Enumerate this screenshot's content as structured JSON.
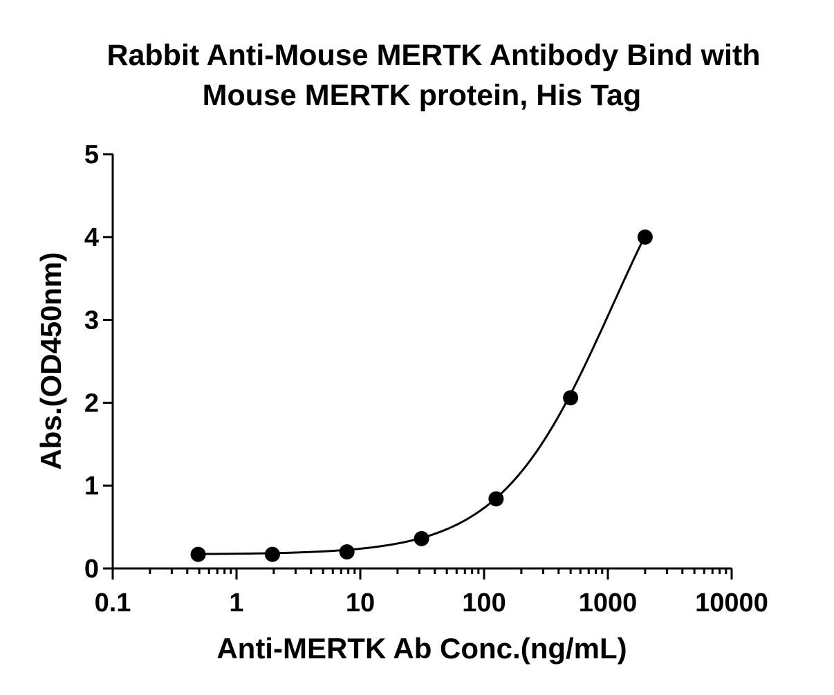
{
  "chart_data": {
    "type": "scatter",
    "title_line1": "Rabbit Anti-Mouse MERTK Antibody Bind with",
    "title_line2": "Mouse MERTK protein, His Tag",
    "xlabel": "Anti-MERTK Ab Conc.(ng/mL)",
    "ylabel": "Abs.(OD450nm)",
    "x_scale": "log",
    "xlim": [
      0.1,
      10000
    ],
    "ylim": [
      0,
      5
    ],
    "x_ticks": [
      "0.1",
      "1",
      "10",
      "100",
      "1000",
      "10000"
    ],
    "y_ticks": [
      "0",
      "1",
      "2",
      "3",
      "4",
      "5"
    ],
    "series": [
      {
        "x": [
          0.49,
          1.95,
          7.8,
          31.25,
          125,
          500,
          2000
        ],
        "y": [
          0.17,
          0.17,
          0.2,
          0.36,
          0.84,
          2.06,
          4.0
        ],
        "fit_curve": "sigmoidal"
      }
    ],
    "grid": false,
    "marker_color": "#000000",
    "line_color": "#000000"
  }
}
